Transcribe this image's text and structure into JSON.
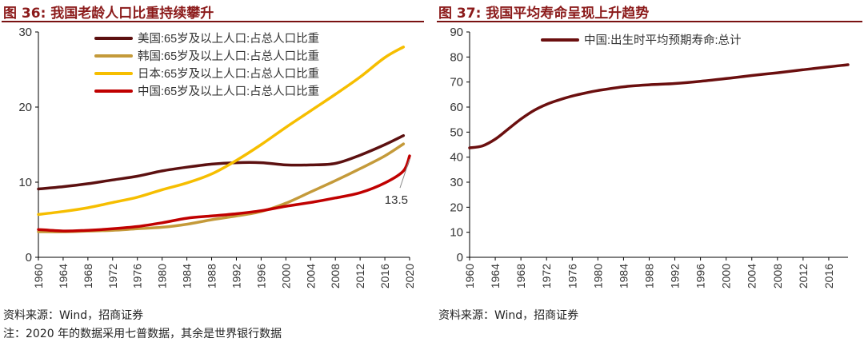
{
  "left": {
    "title": "图 36:  我国老龄人口比重持续攀升",
    "source": "资料来源：Wind，招商证券",
    "note": "注：2020 年的数据采用七普数据，其余是世界银行数据"
  },
  "right": {
    "title": "图 37:  我国平均寿命呈现上升趋势",
    "source": "资料来源：Wind，招商证券"
  },
  "chart_data": [
    {
      "type": "line",
      "ylim": [
        0,
        30
      ],
      "yticks": [
        0,
        10,
        20,
        30
      ],
      "xlim": [
        1960,
        2020
      ],
      "xticks": [
        1960,
        1964,
        1968,
        1972,
        1976,
        1980,
        1984,
        1988,
        1992,
        1996,
        2000,
        2004,
        2008,
        2012,
        2016,
        2020
      ],
      "legend_position": "top-left",
      "annotation": {
        "text": "13.5",
        "x": 2020,
        "y": 13.5
      },
      "series": [
        {
          "name": "美国:65岁及以上人口:占总人口比重",
          "color": "#5c1010",
          "x": [
            1960,
            1964,
            1968,
            1972,
            1976,
            1980,
            1984,
            1988,
            1992,
            1996,
            2000,
            2004,
            2008,
            2012,
            2016,
            2019
          ],
          "y": [
            9.1,
            9.4,
            9.8,
            10.3,
            10.8,
            11.5,
            12.0,
            12.4,
            12.6,
            12.6,
            12.3,
            12.3,
            12.5,
            13.6,
            15.0,
            16.2
          ]
        },
        {
          "name": "韩国:65岁及以上人口:占总人口比重",
          "color": "#c49a3a",
          "x": [
            1960,
            1964,
            1968,
            1972,
            1976,
            1980,
            1984,
            1988,
            1992,
            1996,
            2000,
            2004,
            2008,
            2012,
            2016,
            2019
          ],
          "y": [
            3.4,
            3.4,
            3.5,
            3.6,
            3.8,
            4.0,
            4.4,
            5.0,
            5.5,
            6.1,
            7.2,
            8.7,
            10.2,
            11.8,
            13.5,
            15.1
          ]
        },
        {
          "name": "日本:65岁及以上人口:占总人口比重",
          "color": "#f6be00",
          "x": [
            1960,
            1964,
            1968,
            1972,
            1976,
            1980,
            1984,
            1988,
            1992,
            1996,
            2000,
            2004,
            2008,
            2012,
            2016,
            2019
          ],
          "y": [
            5.7,
            6.1,
            6.6,
            7.3,
            8.0,
            9.0,
            9.9,
            11.1,
            12.9,
            15.0,
            17.3,
            19.5,
            21.7,
            24.0,
            26.6,
            28.0
          ]
        },
        {
          "name": "中国:65岁及以上人口:占总人口比重",
          "color": "#c00000",
          "x": [
            1960,
            1964,
            1968,
            1972,
            1976,
            1980,
            1984,
            1988,
            1992,
            1996,
            2000,
            2004,
            2008,
            2012,
            2016,
            2019,
            2020
          ],
          "y": [
            3.7,
            3.5,
            3.6,
            3.8,
            4.1,
            4.6,
            5.2,
            5.5,
            5.8,
            6.2,
            6.8,
            7.3,
            7.9,
            8.6,
            9.9,
            11.5,
            13.5
          ]
        }
      ]
    },
    {
      "type": "line",
      "ylim": [
        0,
        90
      ],
      "yticks": [
        0,
        10,
        20,
        30,
        40,
        50,
        60,
        70,
        80,
        90
      ],
      "xlim": [
        1960,
        2019
      ],
      "xticks": [
        1960,
        1964,
        1968,
        1972,
        1976,
        1980,
        1984,
        1988,
        1992,
        1996,
        2000,
        2004,
        2008,
        2012,
        2016
      ],
      "legend_position": "top-left",
      "series": [
        {
          "name": "中国:出生时平均预期寿命:总计",
          "color": "#6b0f0f",
          "x": [
            1960,
            1962,
            1964,
            1966,
            1968,
            1970,
            1972,
            1974,
            1976,
            1978,
            1980,
            1984,
            1988,
            1992,
            1996,
            2000,
            2004,
            2008,
            2012,
            2016,
            2019
          ],
          "y": [
            43.7,
            44.5,
            47.2,
            51.2,
            55.2,
            58.6,
            61.1,
            62.9,
            64.4,
            65.6,
            66.6,
            68.1,
            68.9,
            69.4,
            70.3,
            71.4,
            72.6,
            73.7,
            74.9,
            76.1,
            76.9
          ]
        }
      ]
    }
  ]
}
